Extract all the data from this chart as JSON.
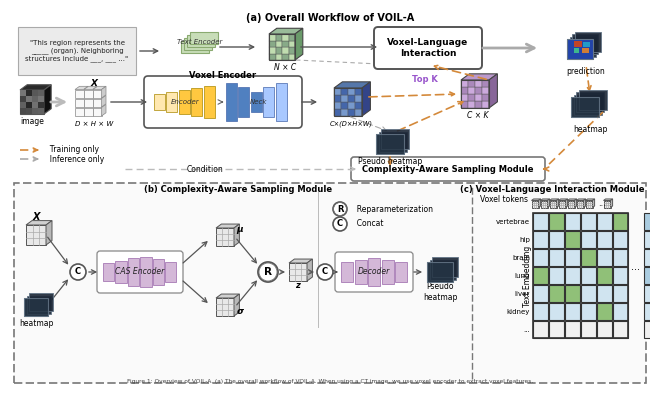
{
  "title_a": "(a) Overall Workflow of VOIL-A",
  "title_b": "(b) Complexity-Aware Sampling Module",
  "title_c": "(c) Voxel-Language Interaction Module",
  "caption": "Figure 1: Overview of VOIL-A. (a) The overall workflow of VOIL-A. When using a CT image, we use voxel encoder to extract voxel features.",
  "text_box_text": "\"This region represents the\n_____ (organ). Neighboring\nstructures include ___, ___ ...\"",
  "legend_training": "Training only",
  "legend_inference": "Inference only",
  "voxel_encoder_label": "Voxel Encoder",
  "encoder_label": "Encoder",
  "neck_label": "Neck",
  "text_encoder_label": "Text Encoder",
  "vli_label": "Voxel-Language\nInteraction",
  "topk_label": "Top K",
  "pseudo_heatmap_label": "Pseudo heatmap",
  "nx_c_label": "N × C",
  "cdhw_label": "C×(D×H×W)",
  "cxk_label": "C × K",
  "prediction_label": "prediction",
  "heatmap_label": "heatmap",
  "image_label": "image",
  "dhw_label": "D × H × W",
  "x_label": "X",
  "condition_label": "Condition",
  "cas_module_label": "Complexity-Aware Sampling Module",
  "cas_encoder_label": "CAS Encoder",
  "decoder_label": "Decoder",
  "reparam_label": "Reparameterization",
  "concat_label": "Concat",
  "mu_label": "μ",
  "sigma_label": "σ",
  "z_label": "z",
  "pseudo_heatmap_b_label": "Pseudo\nheatmap",
  "voxel_tokens_label": "Voxel tokens",
  "text_embedding_label": "Text Embedding",
  "organ_labels": [
    "vertebrae",
    "hip",
    "brain",
    "lung",
    "liver",
    "kidney",
    "..."
  ],
  "bg_color": "#ffffff",
  "arrow_orange": "#D4893A",
  "arrow_gray": "#888888",
  "encoder_color_light": "#FFE8B0",
  "encoder_color_dark": "#FFC840",
  "neck_color_light": "#A8C8FF",
  "neck_color_dark": "#5080C0",
  "text_enc_color": "#C8DDB8",
  "purple_light": "#D4B8D8",
  "purple_dark": "#B090BC",
  "green_cell": "#B8D8A8",
  "blue_cell_light": "#D0E4F0",
  "blue_cell_mid": "#AACCE0",
  "grid_color": "#333333",
  "cell_green_dark": "#90C078",
  "cell_blue_dark": "#78AAC8"
}
